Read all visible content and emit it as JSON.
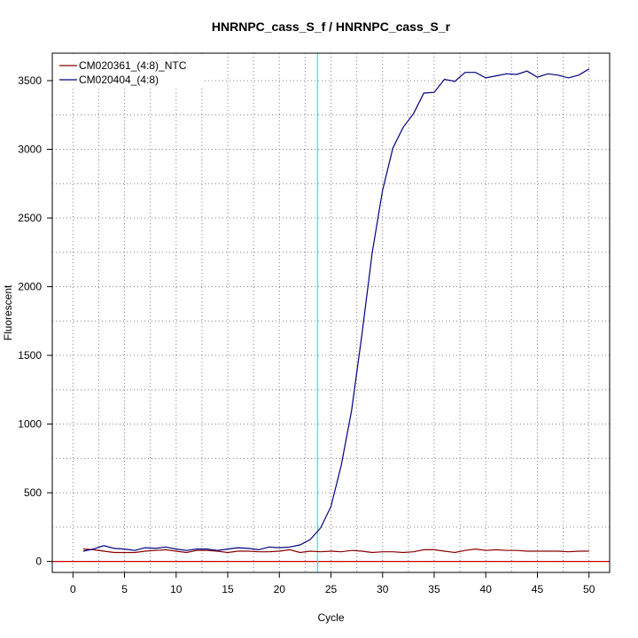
{
  "chart_data": {
    "type": "line",
    "title": "HNRNPC_cass_S_f / HNRNPC_cass_S_r",
    "xlabel": "Cycle",
    "ylabel": "Fluorescent",
    "xlim": [
      -2,
      52
    ],
    "ylim": [
      -80,
      3700
    ],
    "x_ticks": [
      0,
      5,
      10,
      15,
      20,
      25,
      30,
      35,
      40,
      45,
      50
    ],
    "y_ticks": [
      0,
      500,
      1000,
      1500,
      2000,
      2500,
      3000,
      3500
    ],
    "grid": true,
    "legend": "top-left",
    "threshold_x": 23.7,
    "threshold_color": "#00ffff",
    "baseline_y": 0,
    "baseline_color": "#cc0000",
    "x": [
      1,
      2,
      3,
      4,
      5,
      6,
      7,
      8,
      9,
      10,
      11,
      12,
      13,
      14,
      15,
      16,
      17,
      18,
      19,
      20,
      21,
      22,
      23,
      24,
      25,
      26,
      27,
      28,
      29,
      30,
      31,
      32,
      33,
      34,
      35,
      36,
      37,
      38,
      39,
      40,
      41,
      42,
      43,
      44,
      45,
      46,
      47,
      48,
      49,
      50
    ],
    "series": [
      {
        "name": "CM020361_(4:8)_NTC",
        "color": "#8b0000",
        "values": [
          90,
          85,
          75,
          65,
          65,
          65,
          75,
          80,
          85,
          75,
          65,
          80,
          80,
          75,
          65,
          75,
          75,
          70,
          70,
          75,
          85,
          65,
          75,
          70,
          75,
          70,
          80,
          75,
          65,
          70,
          70,
          65,
          70,
          85,
          85,
          75,
          65,
          80,
          90,
          80,
          85,
          80,
          80,
          75,
          75,
          75,
          75,
          70,
          75,
          75
        ]
      },
      {
        "name": "CM020404_(4:8)",
        "color": "#000080",
        "values": [
          75,
          90,
          115,
          95,
          90,
          80,
          100,
          95,
          105,
          90,
          80,
          90,
          90,
          80,
          90,
          100,
          95,
          85,
          105,
          100,
          105,
          120,
          160,
          245,
          400,
          700,
          1100,
          1650,
          2250,
          2700,
          3010,
          3160,
          3260,
          3410,
          3415,
          3510,
          3495,
          3560,
          3560,
          3520,
          3535,
          3550,
          3545,
          3570,
          3525,
          3550,
          3540,
          3520,
          3540,
          3585
        ]
      }
    ]
  }
}
